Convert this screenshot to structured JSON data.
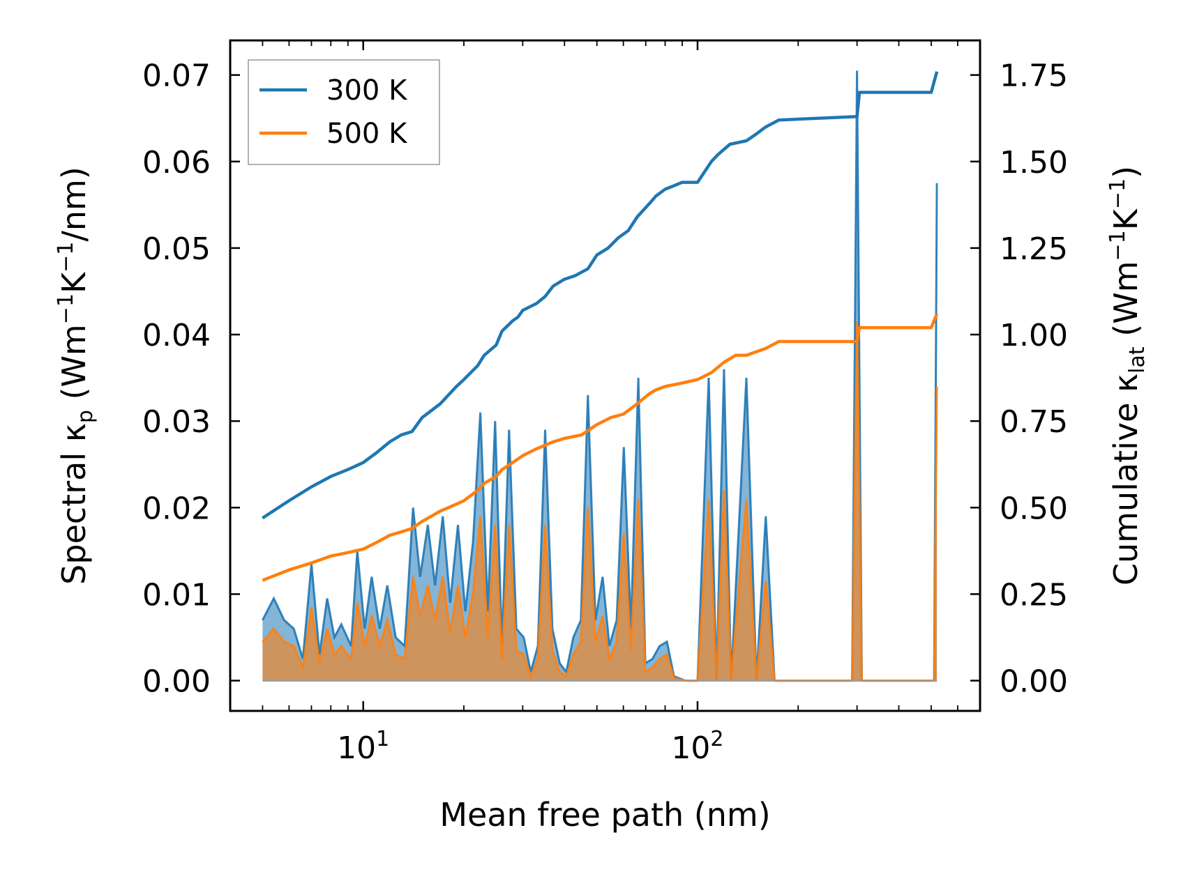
{
  "chart_data": {
    "type": "line",
    "xscale": "log",
    "xlabel": "Mean free path (nm)",
    "ylabel_left": {
      "prefix": "Spectral κ",
      "sub": "p",
      "suffix": " (Wm",
      "sup1": "−1",
      "mid": "K",
      "sup2": "−1",
      "end": "/nm)"
    },
    "ylabel_right": {
      "prefix": "Cumulative κ",
      "sub": "lat",
      "suffix": " (Wm",
      "sup1": "−1",
      "mid": "K",
      "sup2": "−1",
      "end": ")"
    },
    "xlim": [
      4.0,
      700
    ],
    "ylim_left": [
      -0.0035,
      0.074
    ],
    "ylim_right": [
      -0.0875,
      1.85
    ],
    "x_major_ticks": [
      {
        "value": 10,
        "base": "10",
        "exp": "1"
      },
      {
        "value": 100,
        "base": "10",
        "exp": "2"
      }
    ],
    "yticks_left": [
      "0.00",
      "0.01",
      "0.02",
      "0.03",
      "0.04",
      "0.05",
      "0.06",
      "0.07"
    ],
    "yticks_right": [
      "0.00",
      "0.25",
      "0.50",
      "0.75",
      "1.00",
      "1.25",
      "1.50",
      "1.75"
    ],
    "legend": {
      "location": "upper-left",
      "entries": [
        {
          "label": "300 K",
          "color": "#1f77b4"
        },
        {
          "label": "500 K",
          "color": "#ff7f0e"
        }
      ]
    },
    "series_cumulative": [
      {
        "name": "300 K",
        "axis": "right",
        "color": "#1f77b4",
        "points": [
          [
            5,
            0.47
          ],
          [
            6,
            0.52
          ],
          [
            7,
            0.56
          ],
          [
            8,
            0.59
          ],
          [
            9,
            0.61
          ],
          [
            10,
            0.63
          ],
          [
            11,
            0.66
          ],
          [
            12,
            0.69
          ],
          [
            13,
            0.71
          ],
          [
            14,
            0.72
          ],
          [
            15,
            0.76
          ],
          [
            17,
            0.8
          ],
          [
            19,
            0.85
          ],
          [
            20,
            0.87
          ],
          [
            22,
            0.91
          ],
          [
            23,
            0.94
          ],
          [
            25,
            0.97
          ],
          [
            26,
            1.01
          ],
          [
            28,
            1.04
          ],
          [
            29,
            1.05
          ],
          [
            30,
            1.07
          ],
          [
            33,
            1.09
          ],
          [
            35,
            1.11
          ],
          [
            37,
            1.14
          ],
          [
            40,
            1.16
          ],
          [
            43,
            1.17
          ],
          [
            47,
            1.19
          ],
          [
            50,
            1.23
          ],
          [
            54,
            1.25
          ],
          [
            58,
            1.28
          ],
          [
            62,
            1.3
          ],
          [
            66,
            1.34
          ],
          [
            72,
            1.38
          ],
          [
            75,
            1.4
          ],
          [
            80,
            1.42
          ],
          [
            85,
            1.43
          ],
          [
            90,
            1.44
          ],
          [
            100,
            1.44
          ],
          [
            110,
            1.5
          ],
          [
            115,
            1.52
          ],
          [
            125,
            1.55
          ],
          [
            140,
            1.56
          ],
          [
            150,
            1.58
          ],
          [
            160,
            1.6
          ],
          [
            175,
            1.62
          ],
          [
            300,
            1.63
          ],
          [
            305,
            1.7
          ],
          [
            500,
            1.7
          ],
          [
            520,
            1.76
          ]
        ]
      },
      {
        "name": "500 K",
        "axis": "right",
        "color": "#ff7f0e",
        "points": [
          [
            5,
            0.29
          ],
          [
            6,
            0.32
          ],
          [
            7,
            0.34
          ],
          [
            8,
            0.36
          ],
          [
            9,
            0.37
          ],
          [
            10,
            0.38
          ],
          [
            11,
            0.4
          ],
          [
            12,
            0.42
          ],
          [
            13,
            0.43
          ],
          [
            14,
            0.44
          ],
          [
            15,
            0.46
          ],
          [
            17,
            0.49
          ],
          [
            19,
            0.51
          ],
          [
            20,
            0.52
          ],
          [
            22,
            0.55
          ],
          [
            23,
            0.57
          ],
          [
            25,
            0.59
          ],
          [
            26,
            0.61
          ],
          [
            28,
            0.63
          ],
          [
            30,
            0.65
          ],
          [
            33,
            0.67
          ],
          [
            37,
            0.69
          ],
          [
            40,
            0.7
          ],
          [
            45,
            0.71
          ],
          [
            50,
            0.74
          ],
          [
            55,
            0.76
          ],
          [
            60,
            0.77
          ],
          [
            66,
            0.8
          ],
          [
            72,
            0.83
          ],
          [
            75,
            0.84
          ],
          [
            80,
            0.85
          ],
          [
            90,
            0.86
          ],
          [
            100,
            0.87
          ],
          [
            110,
            0.89
          ],
          [
            120,
            0.92
          ],
          [
            130,
            0.94
          ],
          [
            140,
            0.94
          ],
          [
            160,
            0.96
          ],
          [
            175,
            0.98
          ],
          [
            300,
            0.98
          ],
          [
            305,
            1.02
          ],
          [
            500,
            1.02
          ],
          [
            520,
            1.06
          ]
        ]
      }
    ],
    "series_spectral": [
      {
        "name": "300 K",
        "axis": "left",
        "color": "#1f77b4",
        "points": [
          [
            5,
            0.007
          ],
          [
            5.4,
            0.0095
          ],
          [
            5.8,
            0.007
          ],
          [
            6.2,
            0.006
          ],
          [
            6.6,
            0.0025
          ],
          [
            7.0,
            0.0135
          ],
          [
            7.4,
            0.003
          ],
          [
            7.8,
            0.0095
          ],
          [
            8.2,
            0.005
          ],
          [
            8.6,
            0.0065
          ],
          [
            9.2,
            0.004
          ],
          [
            9.6,
            0.015
          ],
          [
            10.1,
            0.006
          ],
          [
            10.6,
            0.012
          ],
          [
            11.2,
            0.006
          ],
          [
            11.8,
            0.011
          ],
          [
            12.5,
            0.005
          ],
          [
            13.3,
            0.004
          ],
          [
            14.1,
            0.02
          ],
          [
            14.8,
            0.012
          ],
          [
            15.6,
            0.018
          ],
          [
            16.4,
            0.011
          ],
          [
            17.3,
            0.019
          ],
          [
            18.2,
            0.009
          ],
          [
            19.2,
            0.018
          ],
          [
            20.2,
            0.008
          ],
          [
            21.3,
            0.016
          ],
          [
            22.4,
            0.031
          ],
          [
            23.6,
            0.008
          ],
          [
            24.8,
            0.03
          ],
          [
            26.0,
            0.004
          ],
          [
            27.3,
            0.029
          ],
          [
            28.7,
            0.006
          ],
          [
            30.2,
            0.005
          ],
          [
            31.7,
            0.001
          ],
          [
            33.3,
            0.004
          ],
          [
            35.0,
            0.029
          ],
          [
            36.8,
            0.006
          ],
          [
            38.7,
            0.002
          ],
          [
            40.5,
            0.001
          ],
          [
            42.5,
            0.005
          ],
          [
            44.8,
            0.007
          ],
          [
            47.0,
            0.033
          ],
          [
            49.5,
            0.007
          ],
          [
            52.0,
            0.012
          ],
          [
            54.5,
            0.004
          ],
          [
            57.3,
            0.007
          ],
          [
            60.2,
            0.027
          ],
          [
            63.2,
            0.006
          ],
          [
            66.5,
            0.035
          ],
          [
            69.8,
            0.002
          ],
          [
            73.3,
            0.0025
          ],
          [
            77.0,
            0.004
          ],
          [
            81.0,
            0.0045
          ],
          [
            85.0,
            0.0005
          ],
          [
            92.0,
            0.0
          ],
          [
            100.0,
            0.0
          ],
          [
            108.0,
            0.035
          ],
          [
            114.0,
            0.0
          ],
          [
            120.0,
            0.036
          ],
          [
            126.0,
            0.0
          ],
          [
            140.0,
            0.035
          ],
          [
            150.0,
            0.0
          ],
          [
            160.0,
            0.019
          ],
          [
            170.0,
            0.0
          ],
          [
            290.0,
            0.0
          ],
          [
            300.0,
            0.0705
          ],
          [
            310.0,
            0.0
          ],
          [
            510.0,
            0.0
          ],
          [
            520.0,
            0.0575
          ]
        ]
      },
      {
        "name": "500 K",
        "axis": "left",
        "color": "#ff7f0e",
        "points": [
          [
            5,
            0.0045
          ],
          [
            5.4,
            0.006
          ],
          [
            5.8,
            0.0045
          ],
          [
            6.2,
            0.004
          ],
          [
            6.6,
            0.0015
          ],
          [
            7.0,
            0.0085
          ],
          [
            7.4,
            0.002
          ],
          [
            7.8,
            0.006
          ],
          [
            8.2,
            0.003
          ],
          [
            8.6,
            0.004
          ],
          [
            9.2,
            0.0025
          ],
          [
            9.6,
            0.009
          ],
          [
            10.1,
            0.004
          ],
          [
            10.6,
            0.0075
          ],
          [
            11.2,
            0.004
          ],
          [
            11.8,
            0.007
          ],
          [
            12.5,
            0.003
          ],
          [
            13.3,
            0.0025
          ],
          [
            14.1,
            0.012
          ],
          [
            14.8,
            0.0075
          ],
          [
            15.6,
            0.011
          ],
          [
            16.4,
            0.007
          ],
          [
            17.3,
            0.012
          ],
          [
            18.2,
            0.0055
          ],
          [
            19.2,
            0.011
          ],
          [
            20.2,
            0.005
          ],
          [
            21.3,
            0.01
          ],
          [
            22.4,
            0.019
          ],
          [
            23.6,
            0.005
          ],
          [
            24.8,
            0.018
          ],
          [
            26.0,
            0.0025
          ],
          [
            27.3,
            0.018
          ],
          [
            28.7,
            0.0035
          ],
          [
            30.2,
            0.003
          ],
          [
            31.7,
            0.0005
          ],
          [
            33.3,
            0.0025
          ],
          [
            35.0,
            0.018
          ],
          [
            36.8,
            0.0035
          ],
          [
            38.7,
            0.001
          ],
          [
            40.5,
            0.0005
          ],
          [
            42.5,
            0.003
          ],
          [
            44.8,
            0.0045
          ],
          [
            47.0,
            0.02
          ],
          [
            49.5,
            0.0045
          ],
          [
            52.0,
            0.0075
          ],
          [
            54.5,
            0.0025
          ],
          [
            57.3,
            0.0045
          ],
          [
            60.2,
            0.017
          ],
          [
            63.2,
            0.0035
          ],
          [
            66.5,
            0.021
          ],
          [
            69.8,
            0.001
          ],
          [
            73.3,
            0.0015
          ],
          [
            77.0,
            0.0025
          ],
          [
            81.0,
            0.003
          ],
          [
            85.0,
            0.0003
          ],
          [
            92.0,
            0.0
          ],
          [
            100.0,
            0.0
          ],
          [
            108.0,
            0.021
          ],
          [
            114.0,
            0.0
          ],
          [
            120.0,
            0.022
          ],
          [
            126.0,
            0.0
          ],
          [
            140.0,
            0.021
          ],
          [
            150.0,
            0.0
          ],
          [
            160.0,
            0.0115
          ],
          [
            170.0,
            0.0
          ],
          [
            290.0,
            0.0
          ],
          [
            300.0,
            0.0415
          ],
          [
            310.0,
            0.0
          ],
          [
            510.0,
            0.0
          ],
          [
            520.0,
            0.034
          ]
        ]
      }
    ]
  }
}
